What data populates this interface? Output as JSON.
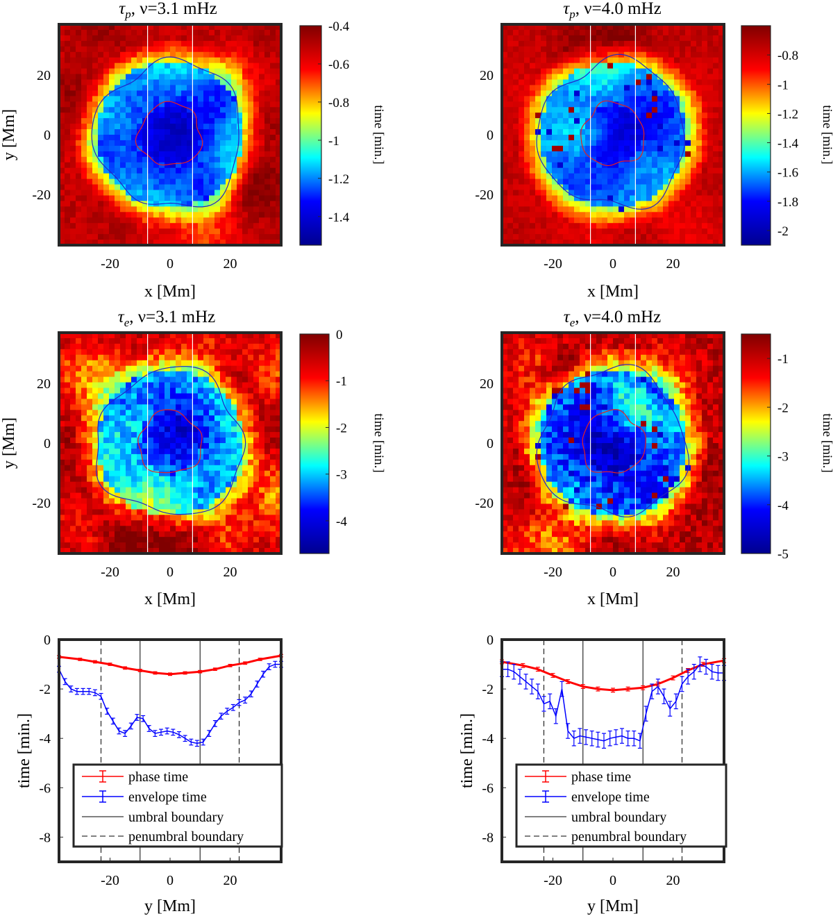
{
  "figure": {
    "maps": [
      {
        "id": "tau-p-3.1",
        "title_sym": "τ",
        "title_sub": "p",
        "title_rest": ", ν=3.1 mHz",
        "xlabel": "x [Mm]",
        "ylabel": "y [Mm]",
        "colorbar_label": "time [min.]",
        "xlim": [
          -37,
          37
        ],
        "ylim": [
          -37,
          37
        ],
        "xticks": [
          -20,
          0,
          20
        ],
        "yticks": [
          -20,
          0,
          20
        ],
        "colorbar_range": [
          -1.55,
          -0.4
        ],
        "colorbar_ticks": [
          -0.4,
          -0.6,
          -0.8,
          -1,
          -1.2,
          -1.4
        ],
        "colorbar_ticklabels": [
          "-0.4",
          "-0.6",
          "-0.8",
          "-1",
          "-1.2",
          "-1.4"
        ]
      },
      {
        "id": "tau-p-4.0",
        "title_sym": "τ",
        "title_sub": "p",
        "title_rest": ", ν=4.0 mHz",
        "xlabel": "x [Mm]",
        "ylabel": "",
        "colorbar_label": "time [min.]",
        "xlim": [
          -37,
          37
        ],
        "ylim": [
          -37,
          37
        ],
        "xticks": [
          -20,
          0,
          20
        ],
        "yticks": [
          -20,
          0,
          20
        ],
        "colorbar_range": [
          -2.1,
          -0.6
        ],
        "colorbar_ticks": [
          -0.8,
          -1,
          -1.2,
          -1.4,
          -1.6,
          -1.8,
          -2
        ],
        "colorbar_ticklabels": [
          "-0.8",
          "-1",
          "-1.2",
          "-1.4",
          "-1.6",
          "-1.8",
          "-2"
        ]
      },
      {
        "id": "tau-e-3.1",
        "title_sym": "τ",
        "title_sub": "e",
        "title_rest": ", ν=3.1 mHz",
        "xlabel": "x [Mm]",
        "ylabel": "y [Mm]",
        "colorbar_label": "time [min.]",
        "xlim": [
          -37,
          37
        ],
        "ylim": [
          -37,
          37
        ],
        "xticks": [
          -20,
          0,
          20
        ],
        "yticks": [
          -20,
          0,
          20
        ],
        "colorbar_range": [
          -4.7,
          0
        ],
        "colorbar_ticks": [
          0,
          -1,
          -2,
          -3,
          -4
        ],
        "colorbar_ticklabels": [
          "0",
          "-1",
          "-2",
          "-3",
          "-4"
        ]
      },
      {
        "id": "tau-e-4.0",
        "title_sym": "τ",
        "title_sub": "e",
        "title_rest": ", ν=4.0 mHz",
        "xlabel": "x [Mm]",
        "ylabel": "",
        "colorbar_label": "time [min.]",
        "xlim": [
          -37,
          37
        ],
        "ylim": [
          -37,
          37
        ],
        "xticks": [
          -20,
          0,
          20
        ],
        "yticks": [
          -20,
          0,
          20
        ],
        "colorbar_range": [
          -5,
          -0.5
        ],
        "colorbar_ticks": [
          -1,
          -2,
          -3,
          -4,
          -5
        ],
        "colorbar_ticklabels": [
          "-1",
          "-2",
          "-3",
          "-4",
          "-5"
        ]
      }
    ],
    "contours": {
      "umbra_radius_mm": 10.5,
      "penumbra_radius_mm": 24.5,
      "umbra_color": "#e8201e",
      "penumbra_color": "#2424c8",
      "cut_lines_x_mm": [
        -7.5,
        7.5
      ],
      "cut_line_color": "#ffffff"
    },
    "colormap": [
      "#00008f",
      "#0000ff",
      "#00ffff",
      "#ffff00",
      "#ff0000",
      "#800000"
    ]
  },
  "chart_data": [
    {
      "type": "line",
      "id": "profile-3.1",
      "xlabel": "y [Mm]",
      "ylabel": "time [min.]",
      "xlim": [
        -37,
        37
      ],
      "ylim": [
        -9,
        0
      ],
      "xticks": [
        -20,
        0,
        20
      ],
      "yticks": [
        0,
        -2,
        -4,
        -6,
        -8
      ],
      "umbral_boundary": [
        -10,
        10
      ],
      "penumbral_boundary": [
        -23,
        23
      ],
      "series": [
        {
          "name": "phase time",
          "color": "#ff0000",
          "x": [
            -37,
            -30,
            -25,
            -20,
            -15,
            -10,
            -5,
            0,
            5,
            10,
            15,
            20,
            25,
            30,
            37
          ],
          "values": [
            -0.7,
            -0.8,
            -0.9,
            -1.0,
            -1.15,
            -1.25,
            -1.35,
            -1.4,
            -1.35,
            -1.3,
            -1.2,
            -1.05,
            -0.95,
            -0.8,
            -0.65
          ],
          "err": 0.05
        },
        {
          "name": "envelope time",
          "color": "#0000ff",
          "x": [
            -37,
            -35,
            -33,
            -31,
            -29,
            -27,
            -25,
            -23,
            -21,
            -19,
            -17,
            -15,
            -13,
            -11,
            -9,
            -7,
            -5,
            -3,
            -1,
            1,
            3,
            5,
            7,
            9,
            11,
            13,
            15,
            17,
            19,
            21,
            23,
            25,
            27,
            29,
            31,
            33,
            35,
            37
          ],
          "values": [
            -1.2,
            -1.7,
            -2.0,
            -2.1,
            -2.1,
            -2.1,
            -2.15,
            -2.3,
            -2.9,
            -3.3,
            -3.7,
            -3.8,
            -3.5,
            -3.15,
            -3.2,
            -3.6,
            -3.8,
            -3.75,
            -3.7,
            -3.75,
            -3.85,
            -4.0,
            -4.15,
            -4.2,
            -4.15,
            -3.8,
            -3.4,
            -3.1,
            -2.9,
            -2.75,
            -2.55,
            -2.45,
            -2.2,
            -1.8,
            -1.4,
            -1.1,
            -1.0,
            -1.0
          ],
          "err": 0.12
        }
      ],
      "legend": [
        "phase time",
        "envelope time",
        "umbral boundary",
        "penumbral boundary"
      ]
    },
    {
      "type": "line",
      "id": "profile-4.0",
      "xlabel": "y [Mm]",
      "ylabel": "time [min.]",
      "xlim": [
        -37,
        37
      ],
      "ylim": [
        -9,
        0
      ],
      "xticks": [
        -20,
        0,
        20
      ],
      "yticks": [
        0,
        -2,
        -4,
        -6,
        -8
      ],
      "umbral_boundary": [
        -10,
        10
      ],
      "penumbral_boundary": [
        -23,
        23
      ],
      "series": [
        {
          "name": "phase time",
          "color": "#ff0000",
          "x": [
            -37,
            -30,
            -25,
            -20,
            -15,
            -10,
            -5,
            0,
            5,
            10,
            15,
            20,
            25,
            30,
            37
          ],
          "values": [
            -0.9,
            -1.05,
            -1.2,
            -1.45,
            -1.7,
            -1.9,
            -2.0,
            -2.05,
            -2.0,
            -1.95,
            -1.8,
            -1.55,
            -1.25,
            -1.0,
            -0.85
          ],
          "err": 0.08
        },
        {
          "name": "envelope time",
          "color": "#0000ff",
          "x": [
            -37,
            -35,
            -33,
            -31,
            -29,
            -27,
            -25,
            -23,
            -21,
            -19,
            -17,
            -15,
            -13,
            -11,
            -9,
            -7,
            -5,
            -3,
            -1,
            1,
            3,
            5,
            7,
            9,
            11,
            13,
            15,
            17,
            19,
            21,
            23,
            25,
            27,
            29,
            31,
            33,
            35,
            37
          ],
          "values": [
            -1.2,
            -1.2,
            -1.3,
            -1.5,
            -1.7,
            -1.9,
            -2.1,
            -2.6,
            -2.5,
            -3.1,
            -2.0,
            -3.7,
            -4.0,
            -3.9,
            -3.95,
            -4.0,
            -4.05,
            -4.1,
            -4.0,
            -3.95,
            -3.9,
            -4.0,
            -4.0,
            -4.1,
            -3.0,
            -2.1,
            -1.9,
            -2.3,
            -2.8,
            -2.5,
            -1.8,
            -1.5,
            -1.3,
            -1.0,
            -1.1,
            -1.3,
            -1.35,
            -1.35
          ],
          "err": 0.3
        }
      ],
      "legend": [
        "phase time",
        "envelope time",
        "umbral boundary",
        "penumbral boundary"
      ]
    }
  ]
}
